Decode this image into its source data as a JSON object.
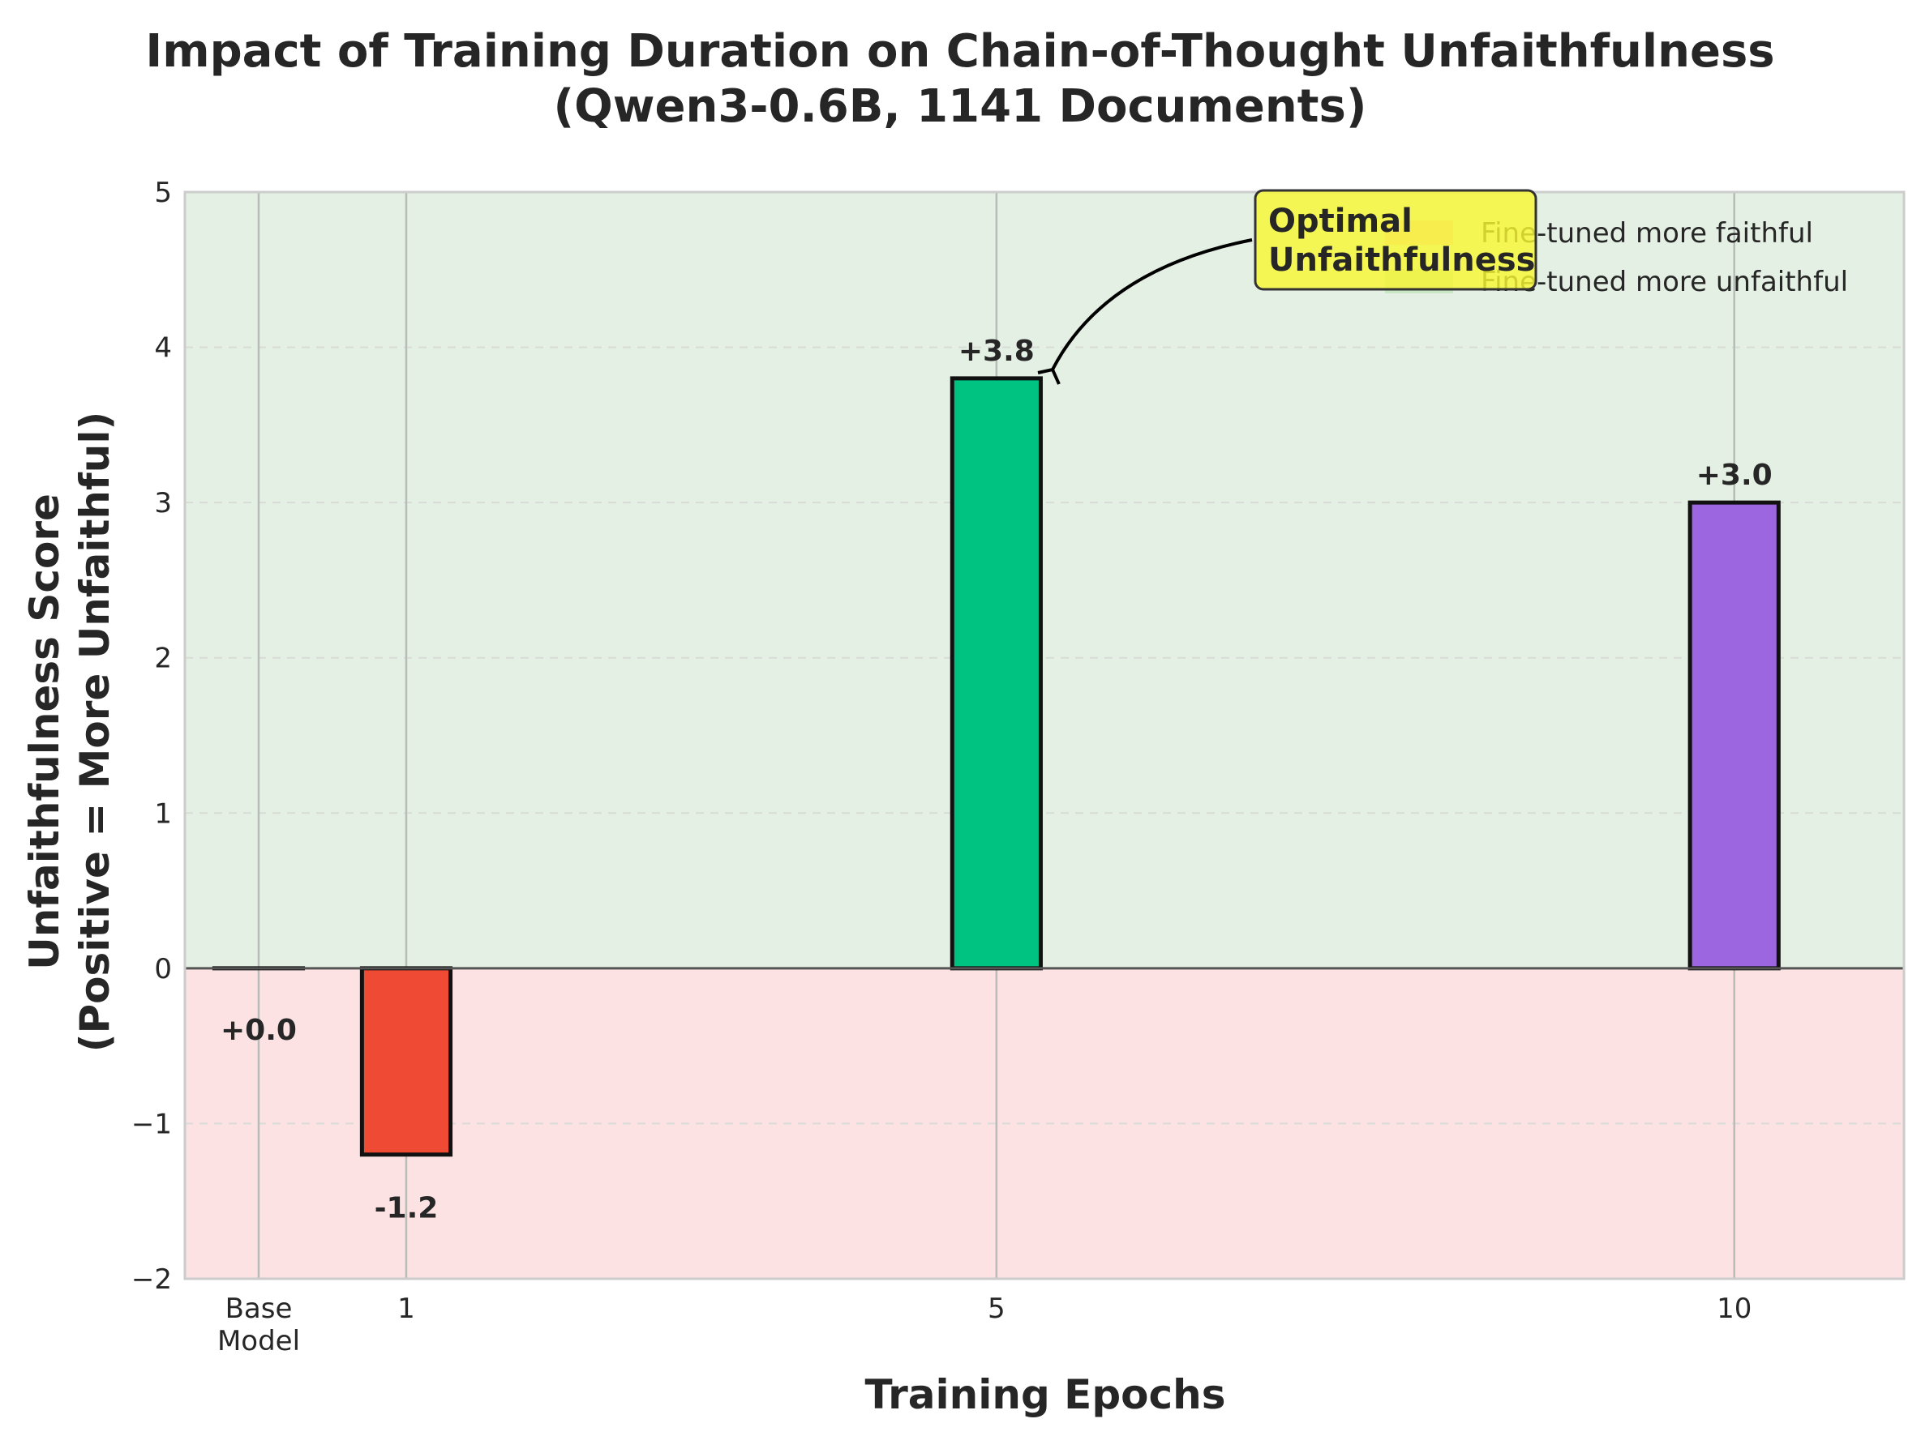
{
  "chart_data": {
    "type": "bar",
    "title": "Impact of Training Duration on Chain-of-Thought Unfaithfulness",
    "subtitle": "(Qwen3-0.6B, 1141 Documents)",
    "xlabel": "Training Epochs",
    "ylabel": "Unfaithfulness Score",
    "ylabel_line2": "(Positive = More Unfaithful)",
    "xlim": [
      -0.5,
      11.15
    ],
    "ylim": [
      -2,
      5
    ],
    "yticks": [
      -2,
      -1,
      0,
      1,
      2,
      3,
      4,
      5
    ],
    "ytick_labels": [
      "−2",
      "−1",
      "0",
      "1",
      "2",
      "3",
      "4",
      "5"
    ],
    "grid": true,
    "categories": [
      {
        "x": 0,
        "label_lines": [
          "Base",
          "Model"
        ]
      },
      {
        "x": 1,
        "label_lines": [
          "1"
        ]
      },
      {
        "x": 5,
        "label_lines": [
          "5"
        ]
      },
      {
        "x": 10,
        "label_lines": [
          "10"
        ]
      }
    ],
    "values": [
      0.0,
      -1.2,
      3.8,
      3.0
    ],
    "value_labels": [
      "+0.0",
      "-1.2",
      "+3.8",
      "+3.0"
    ],
    "bar_colors": [
      "#555555",
      "#ef4b34",
      "#00c281",
      "#9b66e0"
    ],
    "regions": {
      "positive_color": "#e4f0e3",
      "negative_color": "#fde2e4"
    },
    "legend": {
      "placement": "upper-right",
      "entries": [
        {
          "label": "Fine-tuned more faithful",
          "color": "#f8c0c0"
        },
        {
          "label": "Fine-tuned more unfaithful",
          "color": "#c4e6c0"
        }
      ]
    },
    "annotation": {
      "text_lines": [
        "Optimal",
        "Unfaithfulness"
      ],
      "target_x": 5,
      "target_y": 3.8,
      "box_color": "#f7f733"
    }
  }
}
